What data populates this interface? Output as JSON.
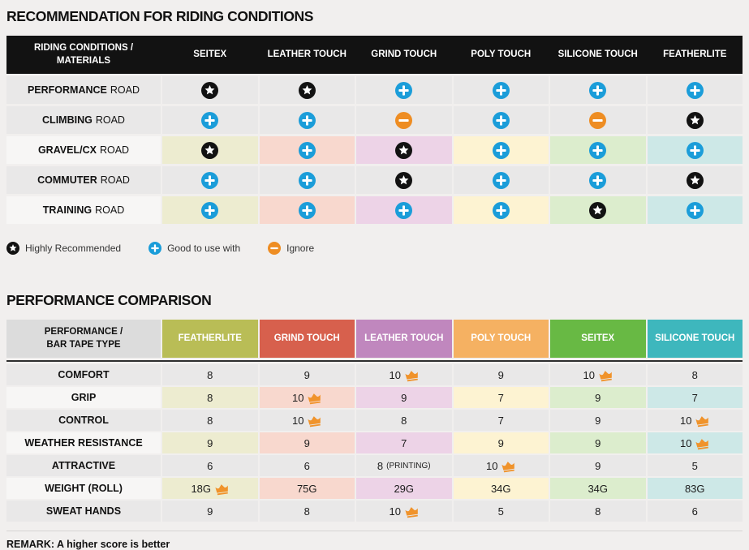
{
  "colors": {
    "icon_black": "#121212",
    "icon_blue": "#1b9dd9",
    "icon_orange": "#ee8d23",
    "crown_orange": "#f0932b",
    "gray_cell": "#e9e8e8",
    "light_label_cell": "#f7f6f5",
    "tints": [
      "#edecd0",
      "#f8d8ce",
      "#edd3e7",
      "#fdf3d2",
      "#dcedcd",
      "#cde8e7"
    ]
  },
  "section1": {
    "title": "RECOMMENDATION FOR RIDING CONDITIONS",
    "table": {
      "corner_label": "RIDING CONDITIONS /\nMATERIALS",
      "columns": [
        "SEITEX",
        "LEATHER TOUCH",
        "GRIND TOUCH",
        "POLY TOUCH",
        "SILICONE TOUCH",
        "FEATHERLITE"
      ],
      "rows": [
        {
          "label_bold": "PERFORMANCE",
          "label_rest": "ROAD",
          "tinted": false,
          "cells": [
            "star",
            "star",
            "plus",
            "plus",
            "plus",
            "plus"
          ]
        },
        {
          "label_bold": "CLIMBING",
          "label_rest": "ROAD",
          "tinted": false,
          "cells": [
            "plus",
            "plus",
            "minus",
            "plus",
            "minus",
            "star"
          ]
        },
        {
          "label_bold": "GRAVEL/CX",
          "label_rest": "ROAD",
          "tinted": true,
          "cells": [
            "star",
            "plus",
            "star",
            "plus",
            "plus",
            "plus"
          ]
        },
        {
          "label_bold": "COMMUTER",
          "label_rest": "ROAD",
          "tinted": false,
          "cells": [
            "plus",
            "plus",
            "star",
            "plus",
            "plus",
            "star"
          ]
        },
        {
          "label_bold": "TRAINING",
          "label_rest": "ROAD",
          "tinted": true,
          "cells": [
            "plus",
            "plus",
            "plus",
            "plus",
            "star",
            "plus"
          ]
        }
      ]
    },
    "legend": [
      {
        "icon": "star",
        "label": "Highly Recommended"
      },
      {
        "icon": "plus",
        "label": "Good to use with"
      },
      {
        "icon": "minus",
        "label": "Ignore"
      }
    ]
  },
  "section2": {
    "title": "PERFORMANCE COMPARISON",
    "table": {
      "corner_label": "PERFORMANCE /\nBAR TAPE TYPE",
      "columns": [
        {
          "label": "FEATHERLITE",
          "color": "#b9bd56"
        },
        {
          "label": "GRIND TOUCH",
          "color": "#d7604d"
        },
        {
          "label": "LEATHER TOUCH",
          "color": "#c087be"
        },
        {
          "label": "POLY TOUCH",
          "color": "#f5b162"
        },
        {
          "label": "SEITEX",
          "color": "#68b944"
        },
        {
          "label": "SILICONE TOUCH",
          "color": "#3eb7bd"
        }
      ],
      "rows": [
        {
          "label": "COMFORT",
          "tinted": false,
          "cells": [
            {
              "value": "8"
            },
            {
              "value": "9"
            },
            {
              "value": "10",
              "crown": true
            },
            {
              "value": "9"
            },
            {
              "value": "10",
              "crown": true
            },
            {
              "value": "8"
            }
          ]
        },
        {
          "label": "GRIP",
          "tinted": true,
          "cells": [
            {
              "value": "8"
            },
            {
              "value": "10",
              "crown": true
            },
            {
              "value": "9"
            },
            {
              "value": "7"
            },
            {
              "value": "9"
            },
            {
              "value": "7"
            }
          ]
        },
        {
          "label": "CONTROL",
          "tinted": false,
          "cells": [
            {
              "value": "8"
            },
            {
              "value": "10",
              "crown": true
            },
            {
              "value": "8"
            },
            {
              "value": "7"
            },
            {
              "value": "9"
            },
            {
              "value": "10",
              "crown": true
            }
          ]
        },
        {
          "label": "WEATHER RESISTANCE",
          "tinted": true,
          "cells": [
            {
              "value": "9"
            },
            {
              "value": "9"
            },
            {
              "value": "7"
            },
            {
              "value": "9"
            },
            {
              "value": "9"
            },
            {
              "value": "10",
              "crown": true
            }
          ]
        },
        {
          "label": "ATTRACTIVE",
          "tinted": false,
          "cells": [
            {
              "value": "6"
            },
            {
              "value": "6"
            },
            {
              "value": "8",
              "note": "(PRINTING)"
            },
            {
              "value": "10",
              "crown": true
            },
            {
              "value": "9"
            },
            {
              "value": "5"
            }
          ]
        },
        {
          "label": "WEIGHT (ROLL)",
          "tinted": true,
          "cells": [
            {
              "value": "18G",
              "crown": true
            },
            {
              "value": "75G"
            },
            {
              "value": "29G"
            },
            {
              "value": "34G"
            },
            {
              "value": "34G"
            },
            {
              "value": "83G"
            }
          ]
        },
        {
          "label": "SWEAT HANDS",
          "tinted": false,
          "cells": [
            {
              "value": "9"
            },
            {
              "value": "8"
            },
            {
              "value": "10",
              "crown": true
            },
            {
              "value": "5"
            },
            {
              "value": "8"
            },
            {
              "value": "6"
            }
          ]
        }
      ]
    },
    "remark": "REMARK: A higher score is better"
  }
}
